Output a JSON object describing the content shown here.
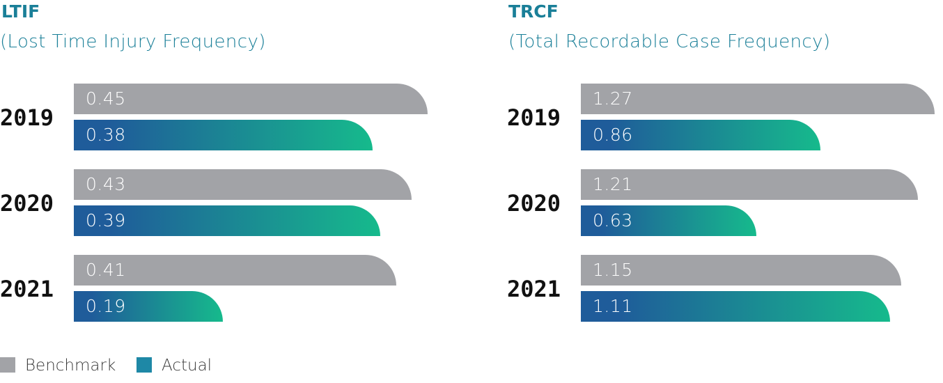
{
  "colors": {
    "title": "#1a7f98",
    "benchmark": "#a2a3a7",
    "actual_start": "#1f5c9a",
    "actual_end": "#16ba8c",
    "legend_actual": "#1e88a6"
  },
  "legend": {
    "benchmark": "Benchmark",
    "actual": "Actual"
  },
  "chart_data": [
    {
      "type": "bar",
      "orientation": "horizontal",
      "title": "LTIF",
      "subtitle": "(Lost Time Injury Frequency)",
      "categories": [
        "2019",
        "2020",
        "2021"
      ],
      "series": [
        {
          "name": "Benchmark",
          "values": [
            0.45,
            0.43,
            0.41
          ],
          "labels": [
            "0.45",
            "0.43",
            "0.41"
          ]
        },
        {
          "name": "Actual",
          "values": [
            0.38,
            0.39,
            0.19
          ],
          "labels": [
            "0.38",
            "0.39",
            "0.19"
          ]
        }
      ],
      "xlim": [
        0,
        0.45
      ],
      "legend_position": "bottom-left",
      "grid": false
    },
    {
      "type": "bar",
      "orientation": "horizontal",
      "title": "TRCF",
      "subtitle": "(Total Recordable Case Frequency)",
      "categories": [
        "2019",
        "2020",
        "2021"
      ],
      "series": [
        {
          "name": "Benchmark",
          "values": [
            1.27,
            1.21,
            1.15
          ],
          "labels": [
            "1.27",
            "1.21",
            "1.15"
          ]
        },
        {
          "name": "Actual",
          "values": [
            0.86,
            0.63,
            1.11
          ],
          "labels": [
            "0.86",
            "0.63",
            "1.11"
          ]
        }
      ],
      "xlim": [
        0,
        1.27
      ],
      "legend_position": "bottom-left",
      "grid": false
    }
  ]
}
